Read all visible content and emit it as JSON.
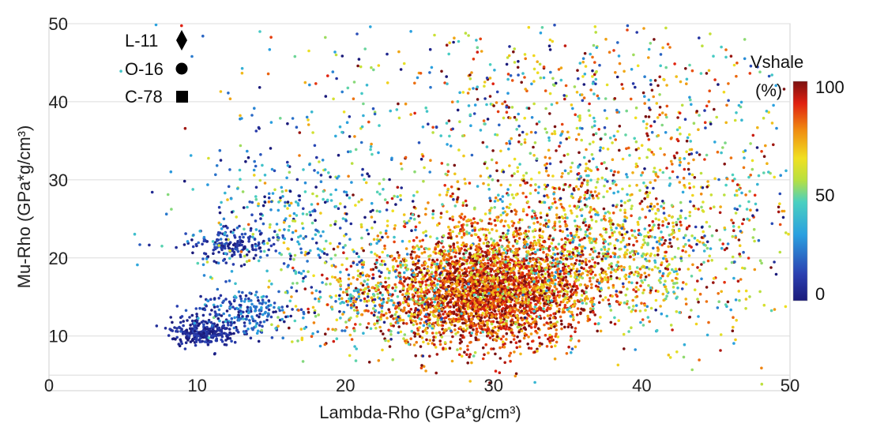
{
  "chart_data": {
    "type": "scatter",
    "xlabel": "Lambda-Rho (GPa*g/cm³)",
    "ylabel": "Mu-Rho (GPa*g/cm³)",
    "xlim": [
      0,
      50
    ],
    "ylim": [
      3,
      50
    ],
    "xticks": [
      "0",
      "10",
      "20",
      "30",
      "40",
      "50"
    ],
    "yticks": [
      "10",
      "20",
      "30",
      "40",
      "50"
    ],
    "grid": "horizontal",
    "legend": {
      "placement": "top-left",
      "entries": [
        {
          "label": "L-11",
          "marker": "diamond"
        },
        {
          "label": "O-16",
          "marker": "circle"
        },
        {
          "label": "C-78",
          "marker": "square"
        }
      ]
    },
    "colorbar": {
      "title_line1": "Vshale",
      "title_line2": "(%)",
      "min_label": "0",
      "mid_label": "50",
      "max_label": "100",
      "range": [
        0,
        100
      ],
      "colormap": "jet"
    },
    "clusters": [
      {
        "cx": 29.5,
        "cy": 15.5,
        "sx": 3.2,
        "sy": 3.4,
        "count": 2600,
        "vs_mean": 88,
        "vs_sd": 12
      },
      {
        "cx": 33.0,
        "cy": 20.0,
        "sx": 5.5,
        "sy": 4.5,
        "count": 1100,
        "vs_mean": 72,
        "vs_sd": 18
      },
      {
        "cx": 40.0,
        "cy": 22.0,
        "sx": 5.5,
        "sy": 6.5,
        "count": 700,
        "vs_mean": 60,
        "vs_sd": 25
      },
      {
        "cx": 36.0,
        "cy": 35.0,
        "sx": 8.0,
        "sy": 7.0,
        "count": 650,
        "vs_mean": 65,
        "vs_sd": 28
      },
      {
        "cx": 10.5,
        "cy": 10.5,
        "sx": 1.1,
        "sy": 0.9,
        "count": 260,
        "vs_mean": 6,
        "vs_sd": 5
      },
      {
        "cx": 13.0,
        "cy": 13.0,
        "sx": 1.6,
        "sy": 1.6,
        "count": 220,
        "vs_mean": 18,
        "vs_sd": 12
      },
      {
        "cx": 12.5,
        "cy": 21.5,
        "sx": 1.4,
        "sy": 1.0,
        "count": 150,
        "vs_mean": 8,
        "vs_sd": 6
      },
      {
        "cx": 17.0,
        "cy": 25.0,
        "sx": 4.0,
        "sy": 5.0,
        "count": 420,
        "vs_mean": 30,
        "vs_sd": 22
      },
      {
        "cx": 22.0,
        "cy": 14.0,
        "sx": 3.0,
        "sy": 3.0,
        "count": 380,
        "vs_mean": 55,
        "vs_sd": 28
      },
      {
        "cx": 28.0,
        "cy": 42.0,
        "sx": 10.0,
        "sy": 5.0,
        "count": 220,
        "vs_mean": 40,
        "vs_sd": 30
      }
    ]
  }
}
